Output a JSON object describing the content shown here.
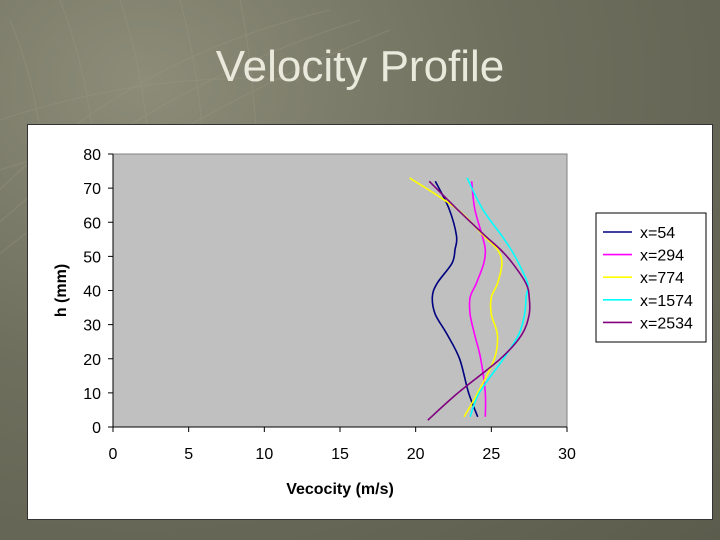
{
  "slide": {
    "title": "Velocity Profile"
  },
  "chart_data": {
    "type": "line",
    "xlabel": "Vecocity (m/s)",
    "ylabel": "h (mm)",
    "xlim": [
      0,
      30
    ],
    "ylim": [
      0,
      80
    ],
    "x_ticks": [
      0,
      5,
      10,
      15,
      20,
      25,
      30
    ],
    "y_ticks": [
      0,
      10,
      20,
      30,
      40,
      50,
      60,
      70,
      80
    ],
    "grid": false,
    "legend": "right",
    "plot_background": "#c0c0c0",
    "series": [
      {
        "name": "x=54",
        "color": "#000080",
        "x": [
          24.1,
          23.5,
          22.9,
          22.1,
          21.3,
          21.1,
          21.4,
          22.4,
          22.6,
          22.7,
          22.2,
          21.3
        ],
        "y": [
          3,
          10,
          20,
          27,
          33,
          38,
          42,
          48,
          52,
          56,
          64,
          72
        ]
      },
      {
        "name": "x=294",
        "color": "#ff00ff",
        "x": [
          24.6,
          24.6,
          24.3,
          23.9,
          23.6,
          23.6,
          24.0,
          24.5,
          24.6,
          24.4,
          23.9,
          23.7
        ],
        "y": [
          3,
          10,
          20,
          27,
          33,
          38,
          42,
          48,
          52,
          56,
          64,
          72
        ]
      },
      {
        "name": "x=774",
        "color": "#ffff00",
        "x": [
          23.2,
          24.1,
          25.2,
          25.4,
          25.0,
          25.0,
          25.4,
          25.7,
          25.4,
          24.5,
          22.7,
          19.6
        ],
        "y": [
          3,
          10,
          20,
          27,
          33,
          38,
          42,
          48,
          52,
          56,
          64,
          73
        ]
      },
      {
        "name": "x=1574",
        "color": "#00ffff",
        "x": [
          23.6,
          24.2,
          25.8,
          26.8,
          27.2,
          27.3,
          27.4,
          26.8,
          26.3,
          25.7,
          24.4,
          23.4
        ],
        "y": [
          3,
          10,
          20,
          27,
          33,
          38,
          42,
          48,
          52,
          56,
          64,
          73
        ]
      },
      {
        "name": "x=2534",
        "color": "#800080",
        "x": [
          20.8,
          22.8,
          25.6,
          27.0,
          27.5,
          27.5,
          27.3,
          26.4,
          25.6,
          24.6,
          22.7,
          20.9
        ],
        "y": [
          2,
          10,
          20,
          27,
          33,
          38,
          42,
          48,
          52,
          56,
          64,
          72
        ]
      }
    ]
  }
}
